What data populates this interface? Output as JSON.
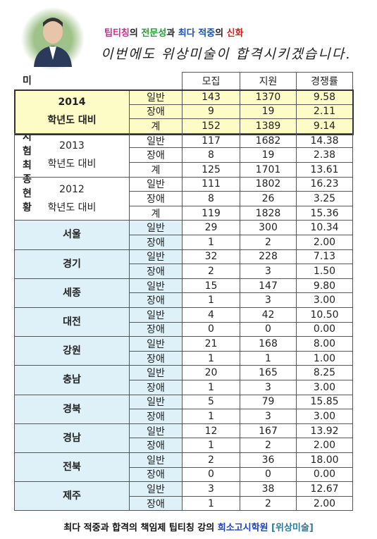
{
  "header": {
    "title_parts": [
      "팁티칭",
      "의 ",
      "전문성",
      "과 ",
      "최다 적중",
      "의 ",
      "신화"
    ],
    "slogan": "이번에도 위상미술이 합격시키겠습니다."
  },
  "table": {
    "heading": "미술 임용 시험 최종 현황",
    "columns": [
      "모집",
      "지원",
      "경쟁률"
    ],
    "groups": [
      {
        "label": [
          "2014",
          "학년도 대비"
        ],
        "rows": [
          {
            "type": "일반",
            "values": [
              "143",
              "1370",
              "9.58"
            ]
          },
          {
            "type": "장애",
            "values": [
              "9",
              "19",
              "2.11"
            ]
          },
          {
            "type": "계",
            "values": [
              "152",
              "1389",
              "9.14"
            ]
          }
        ]
      },
      {
        "label": [
          "2013",
          "학년도 대비"
        ],
        "rows": [
          {
            "type": "일반",
            "values": [
              "117",
              "1682",
              "14.38"
            ]
          },
          {
            "type": "장애",
            "values": [
              "8",
              "19",
              "2.38"
            ]
          },
          {
            "type": "계",
            "values": [
              "125",
              "1701",
              "13.61"
            ]
          }
        ]
      },
      {
        "label": [
          "2012",
          "학년도 대비"
        ],
        "rows": [
          {
            "type": "일반",
            "values": [
              "111",
              "1802",
              "16.23"
            ]
          },
          {
            "type": "장애",
            "values": [
              "8",
              "26",
              "3.25"
            ]
          },
          {
            "type": "계",
            "values": [
              "119",
              "1828",
              "15.36"
            ]
          }
        ]
      },
      {
        "label": [
          "서울"
        ],
        "rows": [
          {
            "type": "일반",
            "values": [
              "29",
              "300",
              "10.34"
            ]
          },
          {
            "type": "장애",
            "values": [
              "1",
              "2",
              "2.00"
            ]
          }
        ]
      },
      {
        "label": [
          "경기"
        ],
        "rows": [
          {
            "type": "일반",
            "values": [
              "32",
              "228",
              "7.13"
            ]
          },
          {
            "type": "장애",
            "values": [
              "2",
              "3",
              "1.50"
            ]
          }
        ]
      },
      {
        "label": [
          "세종"
        ],
        "rows": [
          {
            "type": "일반",
            "values": [
              "15",
              "147",
              "9.80"
            ]
          },
          {
            "type": "장애",
            "values": [
              "1",
              "3",
              "3.00"
            ]
          }
        ]
      },
      {
        "label": [
          "대전"
        ],
        "rows": [
          {
            "type": "일반",
            "values": [
              "4",
              "42",
              "10.50"
            ]
          },
          {
            "type": "장애",
            "values": [
              "0",
              "0",
              "0.00"
            ]
          }
        ]
      },
      {
        "label": [
          "강원"
        ],
        "rows": [
          {
            "type": "일반",
            "values": [
              "21",
              "168",
              "8.00"
            ]
          },
          {
            "type": "장애",
            "values": [
              "1",
              "1",
              "1.00"
            ]
          }
        ]
      },
      {
        "label": [
          "충남"
        ],
        "rows": [
          {
            "type": "일반",
            "values": [
              "20",
              "165",
              "8.25"
            ]
          },
          {
            "type": "장애",
            "values": [
              "1",
              "3",
              "3.00"
            ]
          }
        ]
      },
      {
        "label": [
          "경북"
        ],
        "rows": [
          {
            "type": "일반",
            "values": [
              "5",
              "79",
              "15.85"
            ]
          },
          {
            "type": "장애",
            "values": [
              "1",
              "3",
              "3.00"
            ]
          }
        ]
      },
      {
        "label": [
          "경남"
        ],
        "rows": [
          {
            "type": "일반",
            "values": [
              "12",
              "167",
              "13.92"
            ]
          },
          {
            "type": "장애",
            "values": [
              "1",
              "2",
              "2.00"
            ]
          }
        ]
      },
      {
        "label": [
          "전북"
        ],
        "rows": [
          {
            "type": "일반",
            "values": [
              "2",
              "36",
              "18.00"
            ]
          },
          {
            "type": "장애",
            "values": [
              "0",
              "0",
              "0.00"
            ]
          }
        ]
      },
      {
        "label": [
          "제주"
        ],
        "rows": [
          {
            "type": "일반",
            "values": [
              "3",
              "38",
              "12.67"
            ]
          },
          {
            "type": "장애",
            "values": [
              "1",
              "2",
              "2.00"
            ]
          }
        ]
      }
    ]
  },
  "footer": {
    "parts": [
      "최다 적중과 합격의 책임제 팁티칭 강의 ",
      "희소고시학원",
      " [위상미술]"
    ]
  }
}
